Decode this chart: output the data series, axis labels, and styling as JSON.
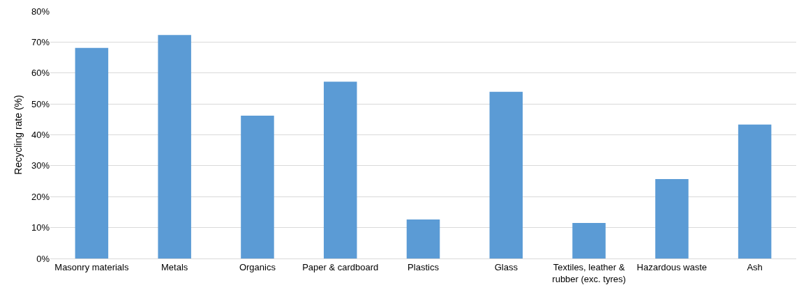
{
  "chart_data": {
    "type": "bar",
    "ylabel": "Recycling rate (%)",
    "categories": [
      "Masonry materials",
      "Metals",
      "Organics",
      "Paper & cardboard",
      "Plastics",
      "Glass",
      "Textiles, leather & rubber (exc. tyres)",
      "Hazardous waste",
      "Ash"
    ],
    "values": [
      68.1,
      72.3,
      46.2,
      57.2,
      12.6,
      53.9,
      11.5,
      25.7,
      43.3
    ],
    "color": "#5b9bd5",
    "ylim": [
      0,
      80
    ],
    "yticks": [
      {
        "value": 0,
        "label": "0%"
      },
      {
        "value": 10,
        "label": "10%"
      },
      {
        "value": 20,
        "label": "20%"
      },
      {
        "value": 30,
        "label": "30%"
      },
      {
        "value": 40,
        "label": "40%"
      },
      {
        "value": 50,
        "label": "50%"
      },
      {
        "value": 60,
        "label": "60%"
      },
      {
        "value": 70,
        "label": "70%"
      },
      {
        "value": 80,
        "label": "80%"
      }
    ],
    "grid": "y",
    "legend": false
  }
}
